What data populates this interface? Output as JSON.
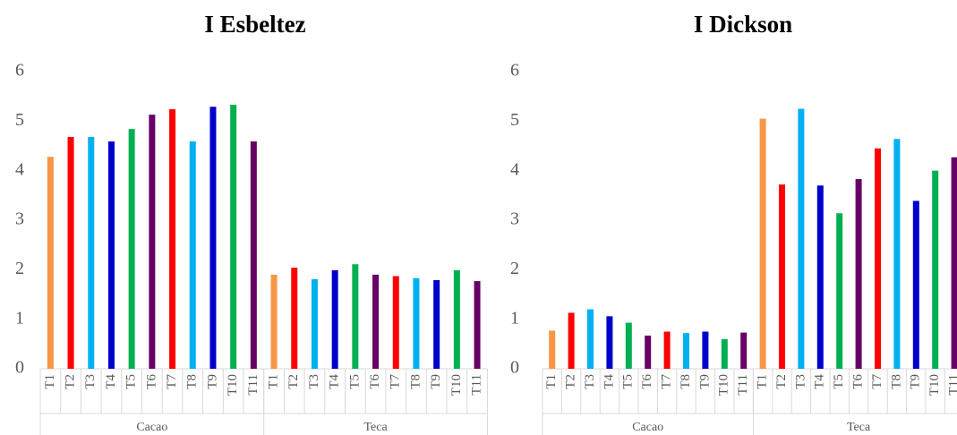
{
  "chart_data": [
    {
      "type": "bar",
      "title": "I Esbeltez",
      "groups": [
        "Cacao",
        "Teca"
      ],
      "categories": [
        "T1",
        "T2",
        "T3",
        "T4",
        "T5",
        "T6",
        "T7",
        "T8",
        "T9",
        "T10",
        "T11",
        "T1",
        "T2",
        "T3",
        "T4",
        "T5",
        "T6",
        "T7",
        "T8",
        "T9",
        "T10",
        "T11"
      ],
      "values": [
        4.28,
        4.68,
        4.68,
        4.59,
        4.84,
        5.13,
        5.24,
        4.59,
        5.29,
        5.33,
        4.59,
        1.9,
        2.04,
        1.81,
        1.99,
        2.11,
        1.9,
        1.87,
        1.83,
        1.79,
        1.99,
        1.77
      ],
      "colors": [
        "#f79646",
        "#ff0000",
        "#00b0f0",
        "#0000cc",
        "#00b050",
        "#660066",
        "#ff0000",
        "#00b0f0",
        "#0000cc",
        "#00b050",
        "#660066",
        "#f79646",
        "#ff0000",
        "#00b0f0",
        "#0000cc",
        "#00b050",
        "#660066",
        "#ff0000",
        "#00b0f0",
        "#0000cc",
        "#00b050",
        "#660066"
      ],
      "ylim": [
        0,
        6
      ],
      "yticks": [
        0,
        1,
        2,
        3,
        4,
        5,
        6
      ]
    },
    {
      "type": "bar",
      "title": "I Dickson",
      "groups": [
        "Cacao",
        "Teca"
      ],
      "categories": [
        "T1",
        "T2",
        "T3",
        "T4",
        "T5",
        "T6",
        "T7",
        "T8",
        "T9",
        "T10",
        "T11",
        "T1",
        "T2",
        "T3",
        "T4",
        "T5",
        "T6",
        "T7",
        "T8",
        "T9",
        "T10",
        "T11"
      ],
      "values": [
        0.77,
        1.13,
        1.2,
        1.06,
        0.93,
        0.67,
        0.75,
        0.72,
        0.75,
        0.6,
        0.73,
        5.05,
        3.72,
        5.25,
        3.7,
        3.14,
        3.83,
        4.45,
        4.64,
        3.39,
        4.0,
        4.27
      ],
      "colors": [
        "#f79646",
        "#ff0000",
        "#00b0f0",
        "#0000cc",
        "#00b050",
        "#660066",
        "#ff0000",
        "#00b0f0",
        "#0000cc",
        "#00b050",
        "#660066",
        "#f79646",
        "#ff0000",
        "#00b0f0",
        "#0000cc",
        "#00b050",
        "#660066",
        "#ff0000",
        "#00b0f0",
        "#0000cc",
        "#00b050",
        "#660066"
      ],
      "ylim": [
        0,
        6
      ],
      "yticks": [
        0,
        1,
        2,
        3,
        4,
        5,
        6
      ]
    }
  ]
}
